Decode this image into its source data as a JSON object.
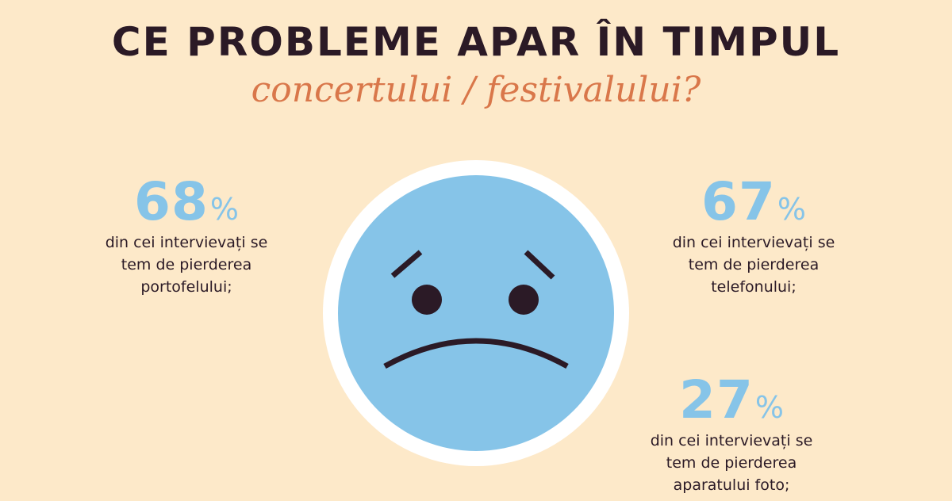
{
  "header": {
    "title": "CE PROBLEME APAR ÎN TIMPUL",
    "subtitle": "concertului / festivalului?"
  },
  "stats": [
    {
      "value": "68",
      "unit": "%",
      "text": "din cei intervievați se\ntem de pierderea\nportofelului;"
    },
    {
      "value": "67",
      "unit": "%",
      "text": "din cei intervievați se\ntem de pierderea\ntelefonului;"
    },
    {
      "value": "27",
      "unit": "%",
      "text": "din cei intervievați se\ntem de pierderea\naparatului foto;"
    }
  ],
  "colors": {
    "background": "#fde9c9",
    "title": "#2b1a26",
    "subtitle": "#d9774a",
    "accent": "#86c4e8",
    "face": "#86c4e8",
    "face_ring": "#ffffff"
  },
  "icons": {
    "center": "sad-face-icon"
  }
}
